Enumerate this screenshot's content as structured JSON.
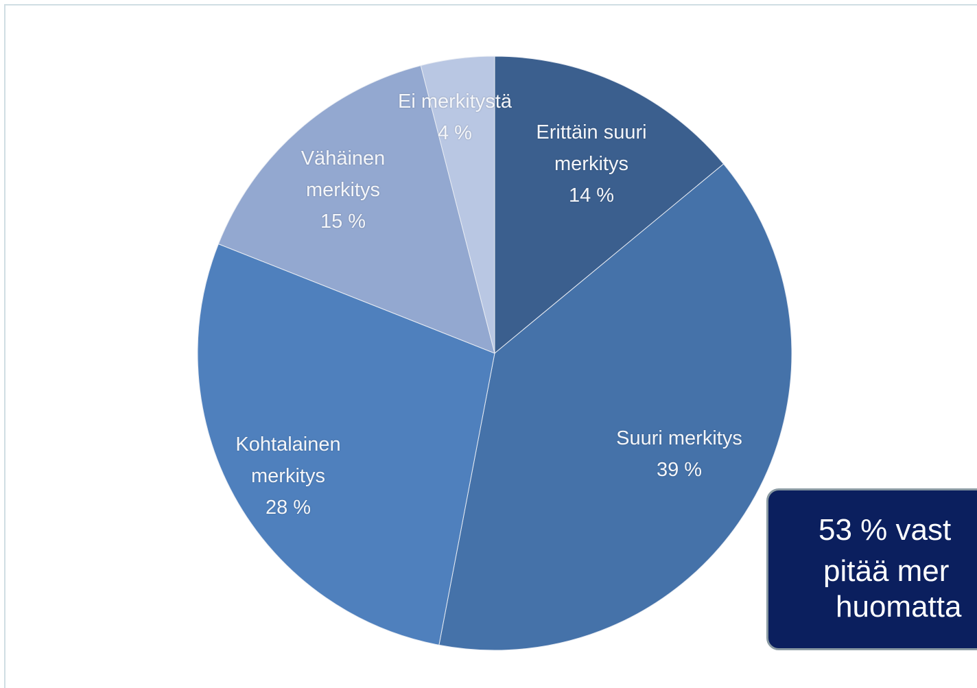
{
  "chart_data": {
    "type": "pie",
    "categories": [
      "Erittäin suuri merkitys",
      "Suuri merkitys",
      "Kohtalainen merkitys",
      "Vähäinen merkitys",
      "Ei merkitystä"
    ],
    "values": [
      14,
      39,
      28,
      15,
      4
    ],
    "value_labels": [
      "14 %",
      "39 %",
      "28 %",
      "15 %",
      "4 %"
    ],
    "colors": [
      "#3b5f8e",
      "#4572a9",
      "#4f80bd",
      "#93a8d0",
      "#b9c7e3"
    ],
    "annotation": [
      "53 % vast",
      "pitää mer",
      "huomatta"
    ]
  }
}
